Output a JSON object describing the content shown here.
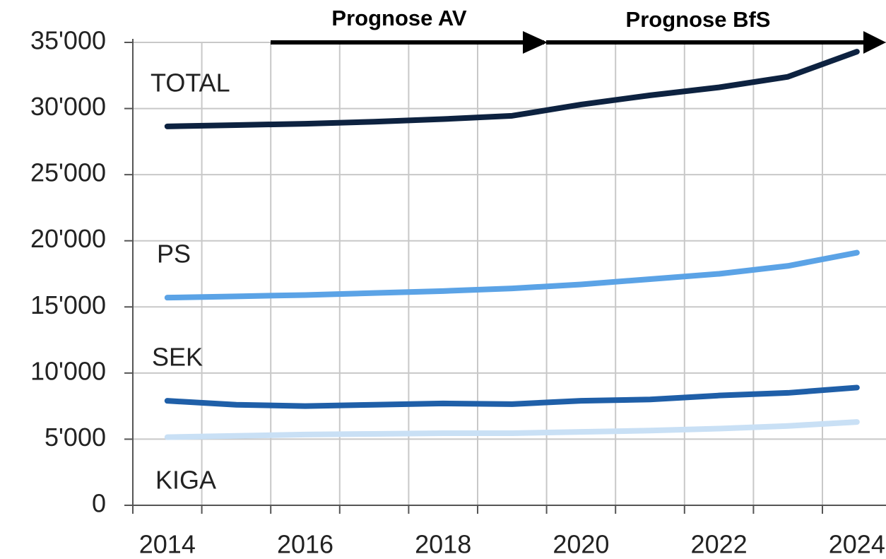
{
  "chart_data": {
    "type": "line",
    "annotations": [
      "Prognose AV",
      "Prognose BfS"
    ],
    "categories": [
      "2014",
      null,
      "2016",
      null,
      "2018",
      null,
      "2020",
      null,
      "2022",
      null,
      "2024"
    ],
    "series": [
      {
        "name": "TOTAL",
        "color": "#0d2240",
        "values": [
          28650,
          28750,
          28850,
          29000,
          29200,
          29450,
          30300,
          31000,
          31600,
          32400,
          34300
        ]
      },
      {
        "name": "PS",
        "color": "#5ba3e6",
        "values": [
          15700,
          15800,
          15900,
          16050,
          16200,
          16400,
          16700,
          17100,
          17500,
          18100,
          19100
        ]
      },
      {
        "name": "SEK",
        "color": "#1f5fa8",
        "values": [
          7900,
          7600,
          7500,
          7600,
          7700,
          7650,
          7900,
          8000,
          8300,
          8500,
          8900
        ]
      },
      {
        "name": "KIGA",
        "color": "#c9e0f5",
        "values": [
          5150,
          5250,
          5350,
          5400,
          5450,
          5450,
          5550,
          5650,
          5800,
          6000,
          6300
        ]
      }
    ],
    "ylim": [
      0,
      35000
    ],
    "yticks": [
      0,
      {
        "value": 5000,
        "label": "5'000"
      },
      {
        "value": 10000,
        "label": "10'000"
      },
      {
        "value": 15000,
        "label": "15'000"
      },
      {
        "value": 20000,
        "label": "20'000"
      },
      {
        "value": 25000,
        "label": "25'000"
      },
      {
        "value": 30000,
        "label": "30'000"
      },
      {
        "value": 35000,
        "label": "35'000"
      }
    ],
    "grid": true
  }
}
